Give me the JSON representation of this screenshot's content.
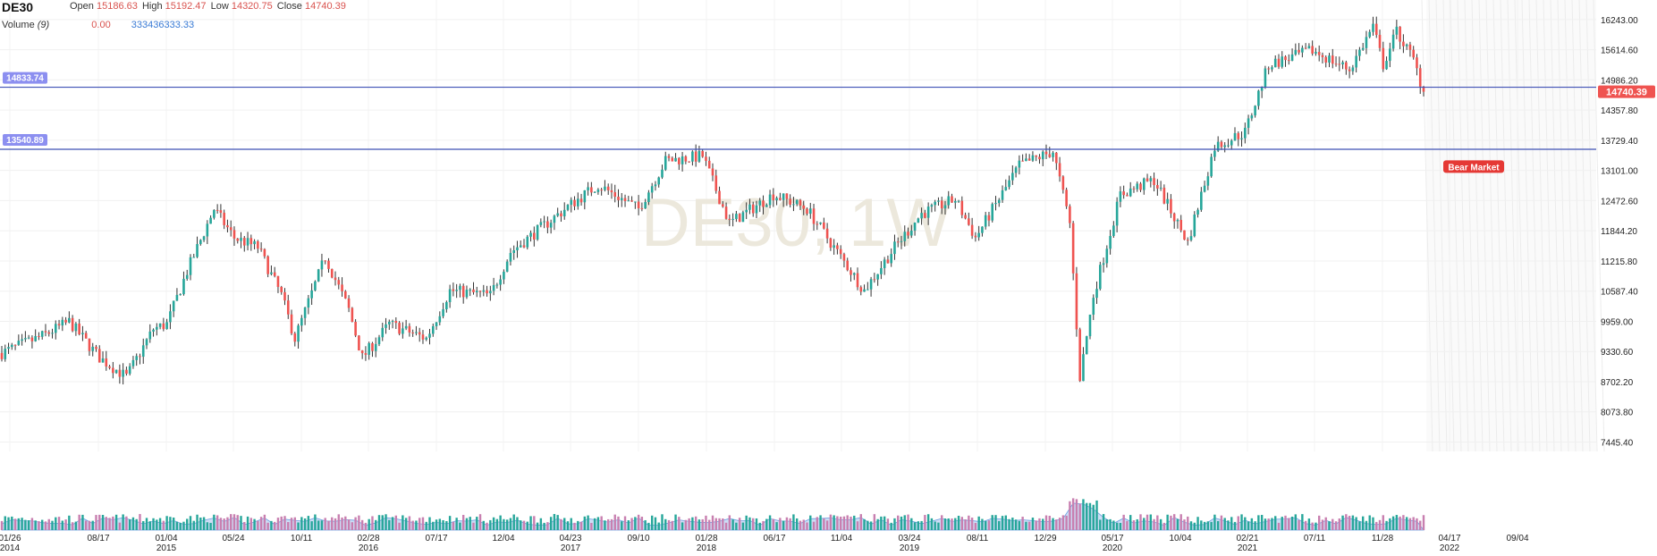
{
  "header": {
    "symbol": "DE30",
    "open_label": "Open",
    "open_value": "15186.63",
    "high_label": "High",
    "high_value": "15192.47",
    "low_label": "Low",
    "low_value": "14320.75",
    "close_label": "Close",
    "close_value": "14740.39",
    "volume_label": "Volume",
    "volume_period": "(9)",
    "volume_value_1": "0.00",
    "volume_value_2": "333436333.33"
  },
  "watermark": "DE30, 1W",
  "colors": {
    "up": "#26a69a",
    "down": "#ef5350",
    "hline": "#3f51b5",
    "last_price": "#ef5350",
    "volume_area": "#90b4e8"
  },
  "chart_data": {
    "type": "candlestick",
    "interval": "1W",
    "y_ticks": [
      "16243.00",
      "15614.60",
      "14986.20",
      "14357.80",
      "13729.40",
      "13101.00",
      "12472.60",
      "11844.20",
      "11215.80",
      "10587.40",
      "9959.00",
      "9330.60",
      "8702.20",
      "8073.80",
      "7445.40"
    ],
    "ylim": [
      7250,
      16650
    ],
    "x_ticks": [
      {
        "label": "01/26",
        "year": "2014"
      },
      {
        "label": "08/17",
        "year": ""
      },
      {
        "label": "01/04",
        "year": "2015"
      },
      {
        "label": "05/24",
        "year": ""
      },
      {
        "label": "10/11",
        "year": ""
      },
      {
        "label": "02/28",
        "year": "2016"
      },
      {
        "label": "07/17",
        "year": ""
      },
      {
        "label": "12/04",
        "year": ""
      },
      {
        "label": "04/23",
        "year": "2017"
      },
      {
        "label": "09/10",
        "year": ""
      },
      {
        "label": "01/28",
        "year": "2018"
      },
      {
        "label": "06/17",
        "year": ""
      },
      {
        "label": "11/04",
        "year": ""
      },
      {
        "label": "03/24",
        "year": "2019"
      },
      {
        "label": "08/11",
        "year": ""
      },
      {
        "label": "12/29",
        "year": ""
      },
      {
        "label": "05/17",
        "year": "2020"
      },
      {
        "label": "10/04",
        "year": ""
      },
      {
        "label": "02/21",
        "year": "2021"
      },
      {
        "label": "07/11",
        "year": ""
      },
      {
        "label": "11/28",
        "year": ""
      },
      {
        "label": "04/17",
        "year": "2022"
      },
      {
        "label": "09/04",
        "year": ""
      }
    ],
    "close_path": [
      {
        "date": "2014-01-26",
        "close": 9300
      },
      {
        "date": "2014-04-20",
        "close": 9650
      },
      {
        "date": "2014-06-15",
        "close": 9950
      },
      {
        "date": "2014-08-17",
        "close": 9200
      },
      {
        "date": "2014-10-12",
        "close": 8800
      },
      {
        "date": "2014-12-07",
        "close": 9800
      },
      {
        "date": "2015-01-04",
        "close": 9900
      },
      {
        "date": "2015-02-15",
        "close": 11000
      },
      {
        "date": "2015-04-12",
        "close": 12300
      },
      {
        "date": "2015-05-24",
        "close": 11700
      },
      {
        "date": "2015-07-12",
        "close": 11500
      },
      {
        "date": "2015-08-30",
        "close": 10500
      },
      {
        "date": "2015-09-27",
        "close": 9600
      },
      {
        "date": "2015-11-29",
        "close": 11300
      },
      {
        "date": "2016-01-17",
        "close": 10200
      },
      {
        "date": "2016-02-14",
        "close": 9200
      },
      {
        "date": "2016-04-10",
        "close": 9900
      },
      {
        "date": "2016-06-26",
        "close": 9600
      },
      {
        "date": "2016-08-14",
        "close": 10600
      },
      {
        "date": "2016-11-06",
        "close": 10500
      },
      {
        "date": "2016-12-18",
        "close": 11400
      },
      {
        "date": "2017-04-23",
        "close": 12400
      },
      {
        "date": "2017-06-18",
        "close": 12800
      },
      {
        "date": "2017-09-10",
        "close": 12300
      },
      {
        "date": "2017-11-05",
        "close": 13300
      },
      {
        "date": "2018-01-21",
        "close": 13400
      },
      {
        "date": "2018-03-18",
        "close": 12000
      },
      {
        "date": "2018-06-17",
        "close": 12600
      },
      {
        "date": "2018-08-26",
        "close": 12300
      },
      {
        "date": "2018-10-28",
        "close": 11400
      },
      {
        "date": "2018-12-23",
        "close": 10600
      },
      {
        "date": "2019-02-24",
        "close": 11500
      },
      {
        "date": "2019-04-21",
        "close": 12200
      },
      {
        "date": "2019-06-30",
        "close": 12500
      },
      {
        "date": "2019-08-11",
        "close": 11700
      },
      {
        "date": "2019-11-10",
        "close": 13200
      },
      {
        "date": "2020-01-19",
        "close": 13500
      },
      {
        "date": "2020-02-23",
        "close": 12000
      },
      {
        "date": "2020-03-15",
        "close": 8800
      },
      {
        "date": "2020-04-12",
        "close": 10500
      },
      {
        "date": "2020-06-07",
        "close": 12600
      },
      {
        "date": "2020-08-16",
        "close": 12900
      },
      {
        "date": "2020-10-25",
        "close": 11600
      },
      {
        "date": "2020-12-20",
        "close": 13600
      },
      {
        "date": "2021-02-21",
        "close": 13900
      },
      {
        "date": "2021-04-11",
        "close": 15300
      },
      {
        "date": "2021-07-11",
        "close": 15600
      },
      {
        "date": "2021-09-26",
        "close": 15200
      },
      {
        "date": "2021-11-14",
        "close": 16100
      },
      {
        "date": "2021-12-05",
        "close": 15300
      },
      {
        "date": "2022-01-02",
        "close": 16000
      },
      {
        "date": "2022-02-06",
        "close": 15400
      },
      {
        "date": "2022-02-27",
        "close": 14740.39
      }
    ],
    "horizontal_lines": [
      {
        "value": 14833.74,
        "label": "14833.74"
      },
      {
        "value": 13540.89,
        "label": "13540.89"
      }
    ],
    "last_price": {
      "value": 14740.39,
      "label": "14740.39"
    },
    "annotation": {
      "text": "Bear Market",
      "date": "2022-03-06",
      "value": 13180
    }
  }
}
